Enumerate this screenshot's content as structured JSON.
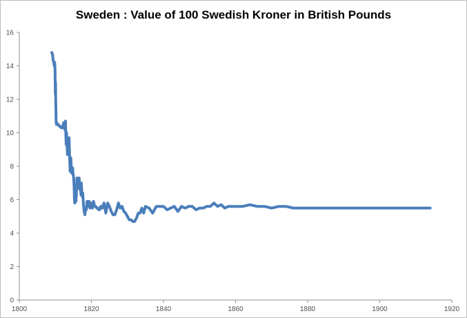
{
  "chart_data": {
    "type": "line",
    "title": "Sweden : Value of 100 Swedish Kroner in British Pounds",
    "xlabel": "",
    "ylabel": "",
    "xlim": [
      1800,
      1920
    ],
    "ylim": [
      0,
      16
    ],
    "xticks": [
      1800,
      1820,
      1840,
      1860,
      1880,
      1900,
      1920
    ],
    "yticks": [
      0,
      2,
      4,
      6,
      8,
      10,
      12,
      14,
      16
    ],
    "grid": false,
    "legend": "none",
    "line_color": "#4a7ebb",
    "series": [
      {
        "x": [
          1809.0,
          1809.2,
          1809.4,
          1809.5,
          1809.7,
          1809.8,
          1809.9,
          1810.0,
          1810.05,
          1810.1,
          1810.15,
          1810.2,
          1810.3,
          1810.4,
          1810.6,
          1810.8,
          1811.0,
          1811.3,
          1811.6,
          1812.0,
          1812.3,
          1812.6,
          1812.8,
          1813.0,
          1813.1,
          1813.2,
          1813.35,
          1813.5,
          1813.65,
          1813.8,
          1813.95,
          1814.1,
          1814.3,
          1814.5,
          1814.6,
          1814.8,
          1814.9,
          1815.0,
          1815.1,
          1815.2,
          1815.3,
          1815.4,
          1815.5,
          1815.6,
          1815.7,
          1815.8,
          1816.0,
          1816.2,
          1816.4,
          1816.6,
          1816.8,
          1817.0,
          1817.1,
          1817.2,
          1817.4,
          1817.6,
          1817.8,
          1818.0,
          1818.2,
          1818.4,
          1818.6,
          1818.8,
          1819.0,
          1819.2,
          1819.4,
          1819.6,
          1819.8,
          1820.0,
          1820.3,
          1820.6,
          1820.9,
          1821.2,
          1821.5,
          1821.8,
          1822.0,
          1822.3,
          1822.6,
          1823.0,
          1823.5,
          1824.0,
          1824.5,
          1825.0,
          1825.5,
          1826.0,
          1826.5,
          1827.0,
          1827.5,
          1828.0,
          1828.5,
          1829.0,
          1829.5,
          1830.0,
          1830.5,
          1831.0,
          1831.5,
          1832.0,
          1832.5,
          1833.0,
          1833.5,
          1834.0,
          1834.5,
          1835.0,
          1836.0,
          1837.0,
          1838.0,
          1839.0,
          1840.0,
          1841.0,
          1842.0,
          1843.0,
          1844.0,
          1845.0,
          1846.0,
          1847.0,
          1848.0,
          1849.0,
          1850.0,
          1851.0,
          1852.0,
          1853.0,
          1854.0,
          1855.0,
          1856.0,
          1857.0,
          1858.0,
          1859.0,
          1860.0,
          1862.0,
          1864.0,
          1866.0,
          1868.0,
          1870.0,
          1872.0,
          1874.0,
          1876.0,
          1878.0,
          1880.0,
          1885.0,
          1890.0,
          1895.0,
          1900.0,
          1905.0,
          1910.0,
          1914.0
        ],
        "values": [
          14.8,
          14.7,
          14.3,
          14.3,
          14.0,
          14.2,
          13.9,
          12.3,
          13.0,
          12.0,
          11.5,
          10.7,
          10.5,
          10.6,
          10.5,
          10.5,
          10.4,
          10.4,
          10.3,
          10.3,
          10.6,
          10.2,
          10.7,
          9.3,
          10.0,
          9.5,
          8.7,
          9.0,
          8.8,
          9.7,
          8.6,
          7.7,
          8.5,
          7.6,
          7.7,
          7.9,
          7.5,
          7.5,
          7.2,
          6.8,
          6.0,
          5.8,
          6.3,
          6.0,
          5.9,
          6.2,
          7.3,
          6.7,
          7.2,
          7.3,
          6.6,
          6.8,
          6.3,
          7.0,
          6.2,
          6.4,
          5.7,
          5.3,
          5.1,
          5.5,
          5.4,
          5.9,
          5.6,
          5.7,
          5.9,
          5.5,
          5.6,
          5.8,
          5.5,
          5.9,
          5.6,
          5.6,
          5.5,
          5.5,
          5.4,
          5.4,
          5.6,
          5.5,
          5.8,
          5.2,
          5.8,
          5.6,
          5.3,
          5.1,
          5.1,
          5.4,
          5.8,
          5.5,
          5.6,
          5.3,
          5.2,
          5.0,
          4.8,
          4.8,
          4.7,
          4.7,
          4.9,
          5.2,
          5.2,
          5.5,
          5.2,
          5.6,
          5.5,
          5.2,
          5.6,
          5.6,
          5.6,
          5.4,
          5.5,
          5.6,
          5.3,
          5.6,
          5.5,
          5.6,
          5.6,
          5.4,
          5.5,
          5.5,
          5.6,
          5.6,
          5.8,
          5.6,
          5.7,
          5.5,
          5.6,
          5.6,
          5.6,
          5.6,
          5.7,
          5.6,
          5.6,
          5.5,
          5.6,
          5.6,
          5.5,
          5.5,
          5.5,
          5.5,
          5.5,
          5.5,
          5.5,
          5.5,
          5.5,
          5.5
        ]
      }
    ]
  }
}
